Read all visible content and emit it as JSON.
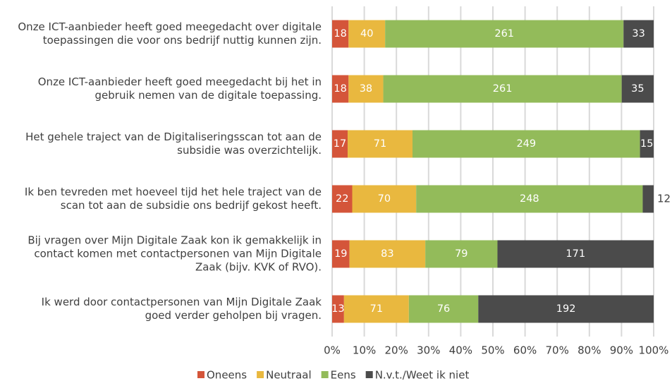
{
  "chart_data": {
    "type": "bar",
    "orientation": "horizontal",
    "stacking": "percent",
    "categories": [
      [
        "Onze ICT-aanbieder heeft goed meegedacht over digitale",
        "toepassingen die voor ons bedrijf nuttig kunnen zijn."
      ],
      [
        "Onze ICT-aanbieder heeft goed meegedacht bij het in",
        "gebruik nemen van de digitale toepassing."
      ],
      [
        "Het gehele traject van de Digitaliseringsscan tot aan de",
        "subsidie was overzichtelijk."
      ],
      [
        "Ik ben tevreden met hoeveel tijd het hele traject van de",
        "scan tot aan de subsidie ons bedrijf gekost heeft."
      ],
      [
        "Bij vragen over Mijn Digitale Zaak kon ik gemakkelijk in",
        "contact komen met contactpersonen van Mijn Digitale",
        "Zaak (bijv. KVK of RVO)."
      ],
      [
        "Ik werd door contactpersonen van Mijn Digitale Zaak",
        "goed verder geholpen bij vragen."
      ]
    ],
    "series": [
      {
        "name": "Oneens",
        "color": "#d4553a",
        "values": [
          18,
          18,
          17,
          22,
          19,
          13
        ]
      },
      {
        "name": "Neutraal",
        "color": "#e9b83f",
        "values": [
          40,
          38,
          71,
          70,
          83,
          71
        ]
      },
      {
        "name": "Eens",
        "color": "#93bb5a",
        "values": [
          261,
          261,
          249,
          248,
          79,
          76
        ]
      },
      {
        "name": "N.v.t./Weet ik niet",
        "color": "#4b4b4b",
        "values": [
          33,
          35,
          15,
          12,
          171,
          192
        ]
      }
    ],
    "xlim": [
      0,
      100
    ],
    "xticks": [
      {
        "value": 0,
        "label": "0%"
      },
      {
        "value": 10,
        "label": "10%"
      },
      {
        "value": 20,
        "label": "20%"
      },
      {
        "value": 30,
        "label": "30%"
      },
      {
        "value": 40,
        "label": "40%"
      },
      {
        "value": 50,
        "label": "50%"
      },
      {
        "value": 60,
        "label": "60%"
      },
      {
        "value": 70,
        "label": "70%"
      },
      {
        "value": 80,
        "label": "80%"
      },
      {
        "value": 90,
        "label": "90%"
      },
      {
        "value": 100,
        "label": "100%"
      }
    ],
    "grid": true,
    "legend": "bottom"
  }
}
